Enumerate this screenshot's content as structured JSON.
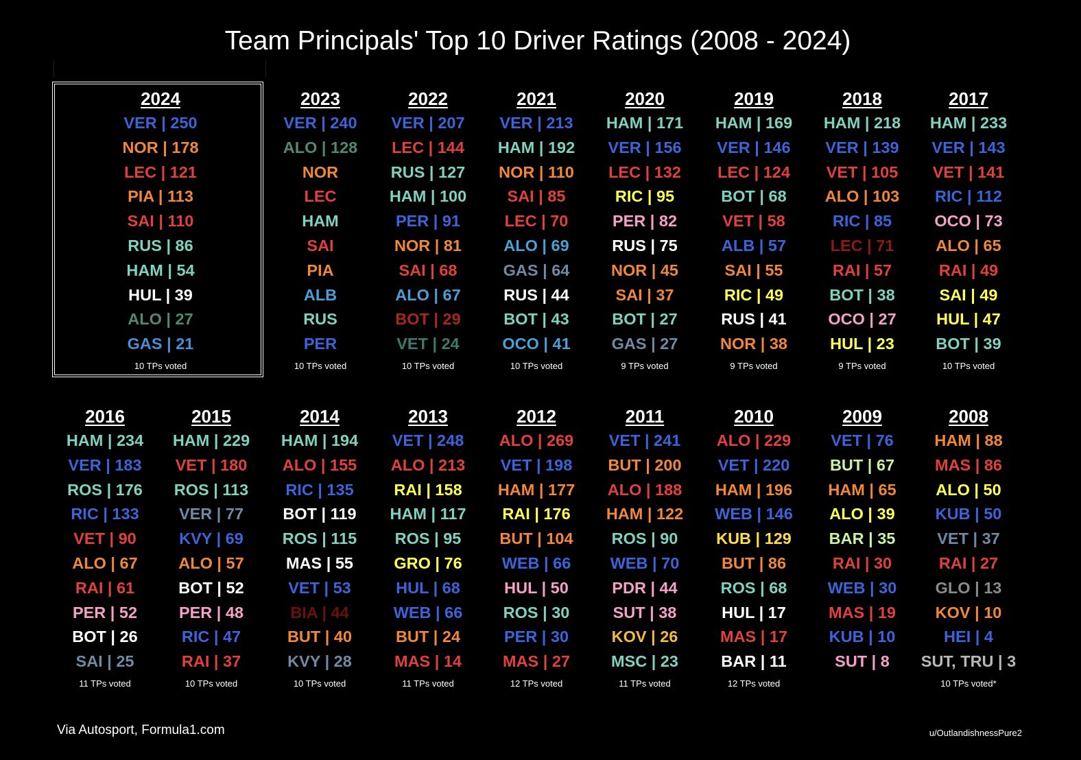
{
  "title": "Team Principals' Top 10 Driver Ratings (2008 - 2024)",
  "source": "Via Autosport, Formula1.com",
  "credit": "u/OutlandishnessPure2",
  "colors": {
    "VER": "#3d63d8",
    "NOR": "#f1873a",
    "LEC": "#e0413d",
    "PIA": "#f1873a",
    "SAI": "#e0413d",
    "RUS": "#7fd1c0",
    "HAM": "#7fd1c0",
    "HUL": "#ffffff",
    "ALO": "#5b9a80",
    "GAS": "#4a7fd0",
    "ALB": "#3a86c8",
    "PER": "#3d63d8",
    "BOT": "#a8271e",
    "VET": "#3d7a6c",
    "OCO": "#3a86c8",
    "RIC": "#ffff66",
    "white": "#ffffff",
    "yellow": "#ffff55",
    "pink": "#f4a0c8",
    "orange": "#f1873a",
    "red": "#e0413d",
    "teal": "#7fd1c0",
    "blue": "#3d63d8",
    "gray": "#6f8aa2",
    "darkred": "#8b1a1a",
    "lightgreen": "#c8f2a0",
    "lightgray": "#b8b8b8"
  },
  "highlight_year": "2024",
  "columns": [
    {
      "year": "2024",
      "voted": "10 TPs voted",
      "entries": [
        {
          "text": "VER | 250",
          "color": "#3d63d8"
        },
        {
          "text": "NOR | 178",
          "color": "#f1873a"
        },
        {
          "text": "LEC | 121",
          "color": "#e0413d"
        },
        {
          "text": "PIA | 113",
          "color": "#f1873a"
        },
        {
          "text": "SAI | 110",
          "color": "#e0413d"
        },
        {
          "text": "RUS | 86",
          "color": "#7fd1c0"
        },
        {
          "text": "HAM | 54",
          "color": "#7fd1c0"
        },
        {
          "text": "HUL | 39",
          "color": "#ffffff"
        },
        {
          "text": "ALO | 27",
          "color": "#4f8a70"
        },
        {
          "text": "GAS | 21",
          "color": "#4a8fd6"
        }
      ]
    },
    {
      "year": "2023",
      "voted": "10 TPs voted",
      "entries": [
        {
          "text": "VER | 240",
          "color": "#3d63d8"
        },
        {
          "text": "ALO | 128",
          "color": "#4f8a70"
        },
        {
          "text": "NOR",
          "color": "#f1873a"
        },
        {
          "text": "LEC",
          "color": "#e0413d"
        },
        {
          "text": "HAM",
          "color": "#7fd1c0"
        },
        {
          "text": "SAI",
          "color": "#e0413d"
        },
        {
          "text": "PIA",
          "color": "#f1873a"
        },
        {
          "text": "ALB",
          "color": "#4a9fd6"
        },
        {
          "text": "RUS",
          "color": "#7fd1c0"
        },
        {
          "text": "PER",
          "color": "#3d63d8"
        }
      ]
    },
    {
      "year": "2022",
      "voted": "10 TPs voted",
      "entries": [
        {
          "text": "VER | 207",
          "color": "#3d63d8"
        },
        {
          "text": "LEC | 144",
          "color": "#e0413d"
        },
        {
          "text": "RUS | 127",
          "color": "#7fd1c0"
        },
        {
          "text": "HAM | 100",
          "color": "#7fd1c0"
        },
        {
          "text": "PER | 91",
          "color": "#3d63d8"
        },
        {
          "text": "NOR | 81",
          "color": "#f1873a"
        },
        {
          "text": "SAI | 68",
          "color": "#e0413d"
        },
        {
          "text": "ALO | 67",
          "color": "#4a9fd6"
        },
        {
          "text": "BOT | 29",
          "color": "#a8271e"
        },
        {
          "text": "VET | 24",
          "color": "#3d7a6c"
        }
      ]
    },
    {
      "year": "2021",
      "voted": "10 TPs voted",
      "entries": [
        {
          "text": "VER | 213",
          "color": "#3d63d8"
        },
        {
          "text": "HAM | 192",
          "color": "#7fd1c0"
        },
        {
          "text": "NOR | 110",
          "color": "#f1873a"
        },
        {
          "text": "SAI | 85",
          "color": "#e0413d"
        },
        {
          "text": "LEC | 70",
          "color": "#e0413d"
        },
        {
          "text": "ALO | 69",
          "color": "#4a9fd6"
        },
        {
          "text": "GAS | 64",
          "color": "#6f8aa2"
        },
        {
          "text": "RUS | 44",
          "color": "#ffffff"
        },
        {
          "text": "BOT | 43",
          "color": "#7fd1c0"
        },
        {
          "text": "OCO | 41",
          "color": "#4a9fd6"
        }
      ]
    },
    {
      "year": "2020",
      "voted": "9 TPs voted",
      "entries": [
        {
          "text": "HAM | 171",
          "color": "#7fd1c0"
        },
        {
          "text": "VER | 156",
          "color": "#3d63d8"
        },
        {
          "text": "LEC | 132",
          "color": "#e0413d"
        },
        {
          "text": "RIC | 95",
          "color": "#ffff55"
        },
        {
          "text": "PER | 82",
          "color": "#f4a0c8"
        },
        {
          "text": "RUS | 75",
          "color": "#ffffff"
        },
        {
          "text": "NOR | 45",
          "color": "#f1873a"
        },
        {
          "text": "SAI | 37",
          "color": "#f1873a"
        },
        {
          "text": "BOT | 27",
          "color": "#7fd1c0"
        },
        {
          "text": "GAS | 27",
          "color": "#6f8aa2"
        }
      ]
    },
    {
      "year": "2019",
      "voted": "9 TPs voted",
      "entries": [
        {
          "text": "HAM | 169",
          "color": "#7fd1c0"
        },
        {
          "text": "VER | 146",
          "color": "#3d63d8"
        },
        {
          "text": "LEC | 124",
          "color": "#e0413d"
        },
        {
          "text": "BOT | 68",
          "color": "#7fd1c0"
        },
        {
          "text": "VET | 58",
          "color": "#e0413d"
        },
        {
          "text": "ALB | 57",
          "color": "#3d63d8"
        },
        {
          "text": "SAI | 55",
          "color": "#f1873a"
        },
        {
          "text": "RIC | 49",
          "color": "#ffff55"
        },
        {
          "text": "RUS | 41",
          "color": "#ffffff"
        },
        {
          "text": "NOR | 38",
          "color": "#f1873a"
        }
      ]
    },
    {
      "year": "2018",
      "voted": "9 TPs voted",
      "entries": [
        {
          "text": "HAM | 218",
          "color": "#7fd1c0"
        },
        {
          "text": "VER | 139",
          "color": "#3d63d8"
        },
        {
          "text": "VET | 105",
          "color": "#e0413d"
        },
        {
          "text": "ALO | 103",
          "color": "#f1873a"
        },
        {
          "text": "RIC | 85",
          "color": "#3d63d8"
        },
        {
          "text": "LEC | 71",
          "color": "#8b1a1a"
        },
        {
          "text": "RAI | 57",
          "color": "#e0413d"
        },
        {
          "text": "BOT | 38",
          "color": "#7fd1c0"
        },
        {
          "text": "OCO | 27",
          "color": "#f4a0c8"
        },
        {
          "text": "HUL | 23",
          "color": "#ffff55"
        }
      ]
    },
    {
      "year": "2017",
      "voted": "10 TPs voted",
      "entries": [
        {
          "text": "HAM | 233",
          "color": "#7fd1c0"
        },
        {
          "text": "VER | 143",
          "color": "#3d63d8"
        },
        {
          "text": "VET | 141",
          "color": "#e0413d"
        },
        {
          "text": "RIC | 112",
          "color": "#3d63d8"
        },
        {
          "text": "OCO | 73",
          "color": "#f4a0c8"
        },
        {
          "text": "ALO | 65",
          "color": "#f1873a"
        },
        {
          "text": "RAI | 49",
          "color": "#e0413d"
        },
        {
          "text": "SAI | 49",
          "color": "#ffff55"
        },
        {
          "text": "HUL | 47",
          "color": "#ffff55"
        },
        {
          "text": "BOT | 39",
          "color": "#7fd1c0"
        }
      ]
    },
    {
      "year": "2016",
      "voted": "11 TPs voted",
      "entries": [
        {
          "text": "HAM | 234",
          "color": "#7fd1c0"
        },
        {
          "text": "VER | 183",
          "color": "#3d63d8"
        },
        {
          "text": "ROS | 176",
          "color": "#7fd1c0"
        },
        {
          "text": "RIC | 133",
          "color": "#3d63d8"
        },
        {
          "text": "VET | 90",
          "color": "#e0413d"
        },
        {
          "text": "ALO | 67",
          "color": "#f1873a"
        },
        {
          "text": "RAI | 61",
          "color": "#e0413d"
        },
        {
          "text": "PER | 52",
          "color": "#f4a0c8"
        },
        {
          "text": "BOT | 26",
          "color": "#ffffff"
        },
        {
          "text": "SAI | 25",
          "color": "#6f8aa2"
        }
      ]
    },
    {
      "year": "2015",
      "voted": "10 TPs voted",
      "entries": [
        {
          "text": "HAM | 229",
          "color": "#7fd1c0"
        },
        {
          "text": "VET | 180",
          "color": "#e0413d"
        },
        {
          "text": "ROS | 113",
          "color": "#7fd1c0"
        },
        {
          "text": "VER | 77",
          "color": "#6f8aa2"
        },
        {
          "text": "KVY | 69",
          "color": "#3d63d8"
        },
        {
          "text": "ALO | 57",
          "color": "#f1873a"
        },
        {
          "text": "BOT | 52",
          "color": "#ffffff"
        },
        {
          "text": "PER | 48",
          "color": "#f4a0c8"
        },
        {
          "text": "RIC | 47",
          "color": "#3d63d8"
        },
        {
          "text": "RAI | 37",
          "color": "#e0413d"
        }
      ]
    },
    {
      "year": "2014",
      "voted": "10 TPs voted",
      "entries": [
        {
          "text": "HAM | 194",
          "color": "#7fd1c0"
        },
        {
          "text": "ALO | 155",
          "color": "#e0413d"
        },
        {
          "text": "RIC | 135",
          "color": "#3d63d8"
        },
        {
          "text": "BOT | 119",
          "color": "#ffffff"
        },
        {
          "text": "ROS | 115",
          "color": "#7fd1c0"
        },
        {
          "text": "MAS | 55",
          "color": "#ffffff"
        },
        {
          "text": "VET | 53",
          "color": "#3d63d8"
        },
        {
          "text": "BIA | 44",
          "color": "#6a1010"
        },
        {
          "text": "BUT | 40",
          "color": "#f1873a"
        },
        {
          "text": "KVY | 28",
          "color": "#6f8aa2"
        }
      ]
    },
    {
      "year": "2013",
      "voted": "11 TPs voted",
      "entries": [
        {
          "text": "VET | 248",
          "color": "#3d63d8"
        },
        {
          "text": "ALO | 213",
          "color": "#e0413d"
        },
        {
          "text": "RAI | 158",
          "color": "#ffff55"
        },
        {
          "text": "HAM | 117",
          "color": "#7fd1c0"
        },
        {
          "text": "ROS | 95",
          "color": "#7fd1c0"
        },
        {
          "text": "GRO | 76",
          "color": "#ffff55"
        },
        {
          "text": "HUL | 68",
          "color": "#3d63d8"
        },
        {
          "text": "WEB | 66",
          "color": "#3d63d8"
        },
        {
          "text": "BUT | 24",
          "color": "#f1873a"
        },
        {
          "text": "MAS | 14",
          "color": "#e0413d"
        }
      ]
    },
    {
      "year": "2012",
      "voted": "12 TPs voted",
      "entries": [
        {
          "text": "ALO | 269",
          "color": "#e0413d"
        },
        {
          "text": "VET | 198",
          "color": "#3d63d8"
        },
        {
          "text": "HAM | 177",
          "color": "#f1873a"
        },
        {
          "text": "RAI | 176",
          "color": "#ffff55"
        },
        {
          "text": "BUT | 104",
          "color": "#f1873a"
        },
        {
          "text": "WEB | 66",
          "color": "#3d63d8"
        },
        {
          "text": "HUL | 50",
          "color": "#f4a0c8"
        },
        {
          "text": "ROS | 30",
          "color": "#7fd1c0"
        },
        {
          "text": "PER | 30",
          "color": "#3d63d8"
        },
        {
          "text": "MAS | 27",
          "color": "#e0413d"
        }
      ]
    },
    {
      "year": "2011",
      "voted": "11 TPs voted",
      "entries": [
        {
          "text": "VET | 241",
          "color": "#3d63d8"
        },
        {
          "text": "BUT | 200",
          "color": "#f1873a"
        },
        {
          "text": "ALO | 188",
          "color": "#e0413d"
        },
        {
          "text": "HAM | 122",
          "color": "#f1873a"
        },
        {
          "text": "ROS | 90",
          "color": "#7fd1c0"
        },
        {
          "text": "WEB | 70",
          "color": "#3d63d8"
        },
        {
          "text": "PDR | 44",
          "color": "#f4a0c8"
        },
        {
          "text": "SUT | 38",
          "color": "#f4a0c8"
        },
        {
          "text": "KOV | 26",
          "color": "#f5b942"
        },
        {
          "text": "MSC | 23",
          "color": "#7fd1c0"
        }
      ]
    },
    {
      "year": "2010",
      "voted": "12 TPs voted",
      "entries": [
        {
          "text": "ALO | 229",
          "color": "#e0413d"
        },
        {
          "text": "VET | 220",
          "color": "#3d63d8"
        },
        {
          "text": "HAM | 196",
          "color": "#f1873a"
        },
        {
          "text": "WEB | 146",
          "color": "#3d63d8"
        },
        {
          "text": "KUB | 129",
          "color": "#ffdd44"
        },
        {
          "text": "BUT | 86",
          "color": "#f1873a"
        },
        {
          "text": "ROS | 68",
          "color": "#7fd1c0"
        },
        {
          "text": "HUL | 17",
          "color": "#ffffff"
        },
        {
          "text": "MAS | 17",
          "color": "#e0413d"
        },
        {
          "text": "BAR | 11",
          "color": "#ffffff"
        }
      ]
    },
    {
      "year": "2009",
      "voted": "",
      "entries": [
        {
          "text": "VET | 76",
          "color": "#3d63d8"
        },
        {
          "text": "BUT | 67",
          "color": "#c8f2a0"
        },
        {
          "text": "HAM | 65",
          "color": "#f1873a"
        },
        {
          "text": "ALO | 39",
          "color": "#ffff55"
        },
        {
          "text": "BAR | 35",
          "color": "#c8f2a0"
        },
        {
          "text": "RAI | 30",
          "color": "#e0413d"
        },
        {
          "text": "WEB | 30",
          "color": "#3d63d8"
        },
        {
          "text": "MAS | 19",
          "color": "#e0413d"
        },
        {
          "text": "KUB | 10",
          "color": "#3d63d8"
        },
        {
          "text": "SUT | 8",
          "color": "#f4a0c8"
        }
      ]
    },
    {
      "year": "2008",
      "voted": "10 TPs voted*",
      "entries": [
        {
          "text": "HAM | 88",
          "color": "#f1873a"
        },
        {
          "text": "MAS | 86",
          "color": "#e0413d"
        },
        {
          "text": "ALO | 50",
          "color": "#ffff55"
        },
        {
          "text": "KUB | 50",
          "color": "#3d63d8"
        },
        {
          "text": "VET | 37",
          "color": "#6f8aa2"
        },
        {
          "text": "RAI | 27",
          "color": "#e0413d"
        },
        {
          "text": "GLO | 13",
          "color": "#8a8a8a"
        },
        {
          "text": "KOV | 10",
          "color": "#f1873a"
        },
        {
          "text": "HEI | 4",
          "color": "#3d63d8"
        },
        {
          "text": "SUT, TRU | 3",
          "color": "#b8b8b8"
        }
      ]
    }
  ]
}
